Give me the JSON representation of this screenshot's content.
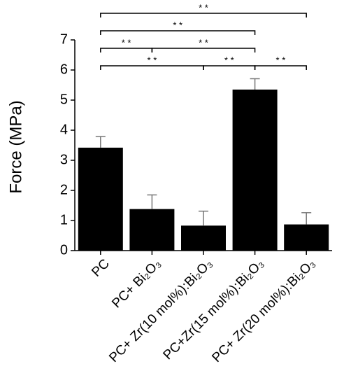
{
  "chart_data": {
    "type": "bar",
    "y_label": "Force (MPa)",
    "categories": [
      "PC",
      "PC+ Bi₂O₃",
      "PC+ Zr(10 mol%):Bi₂O₃",
      "PC+Zr(15 mol%):Bi₂O₃",
      "PC+ Zr(20 mol%):Bi₂O₃"
    ],
    "values": [
      3.42,
      1.38,
      0.83,
      5.35,
      0.87
    ],
    "errors": [
      0.37,
      0.47,
      0.48,
      0.36,
      0.39
    ],
    "color": "#000000",
    "error_color": "#777777",
    "ylim": [
      0,
      7
    ],
    "yticks": [
      0,
      1,
      2,
      3,
      4,
      5,
      6,
      7
    ],
    "significance": [
      {
        "from": "PC",
        "to": "PC+ Zr(10 mol%):Bi₂O₃",
        "label": "* *"
      },
      {
        "from": "PC+ Zr(10 mol%):Bi₂O₃",
        "to": "PC+Zr(15 mol%):Bi₂O₃",
        "label": "* *"
      },
      {
        "from": "PC+Zr(15 mol%):Bi₂O₃",
        "to": "PC+ Zr(20 mol%):Bi₂O₃",
        "label": "* *"
      },
      {
        "from": "PC",
        "to": "PC+ Bi₂O₃",
        "label": "* *"
      },
      {
        "from": "PC+ Bi₂O₃",
        "to": "PC+Zr(15 mol%):Bi₂O₃",
        "label": "* *"
      },
      {
        "from": "PC",
        "to": "PC+Zr(15 mol%):Bi₂O₃",
        "label": "* *"
      },
      {
        "from": "PC",
        "to": "PC+ Zr(20 mol%):Bi₂O₃",
        "label": "* *"
      }
    ]
  }
}
